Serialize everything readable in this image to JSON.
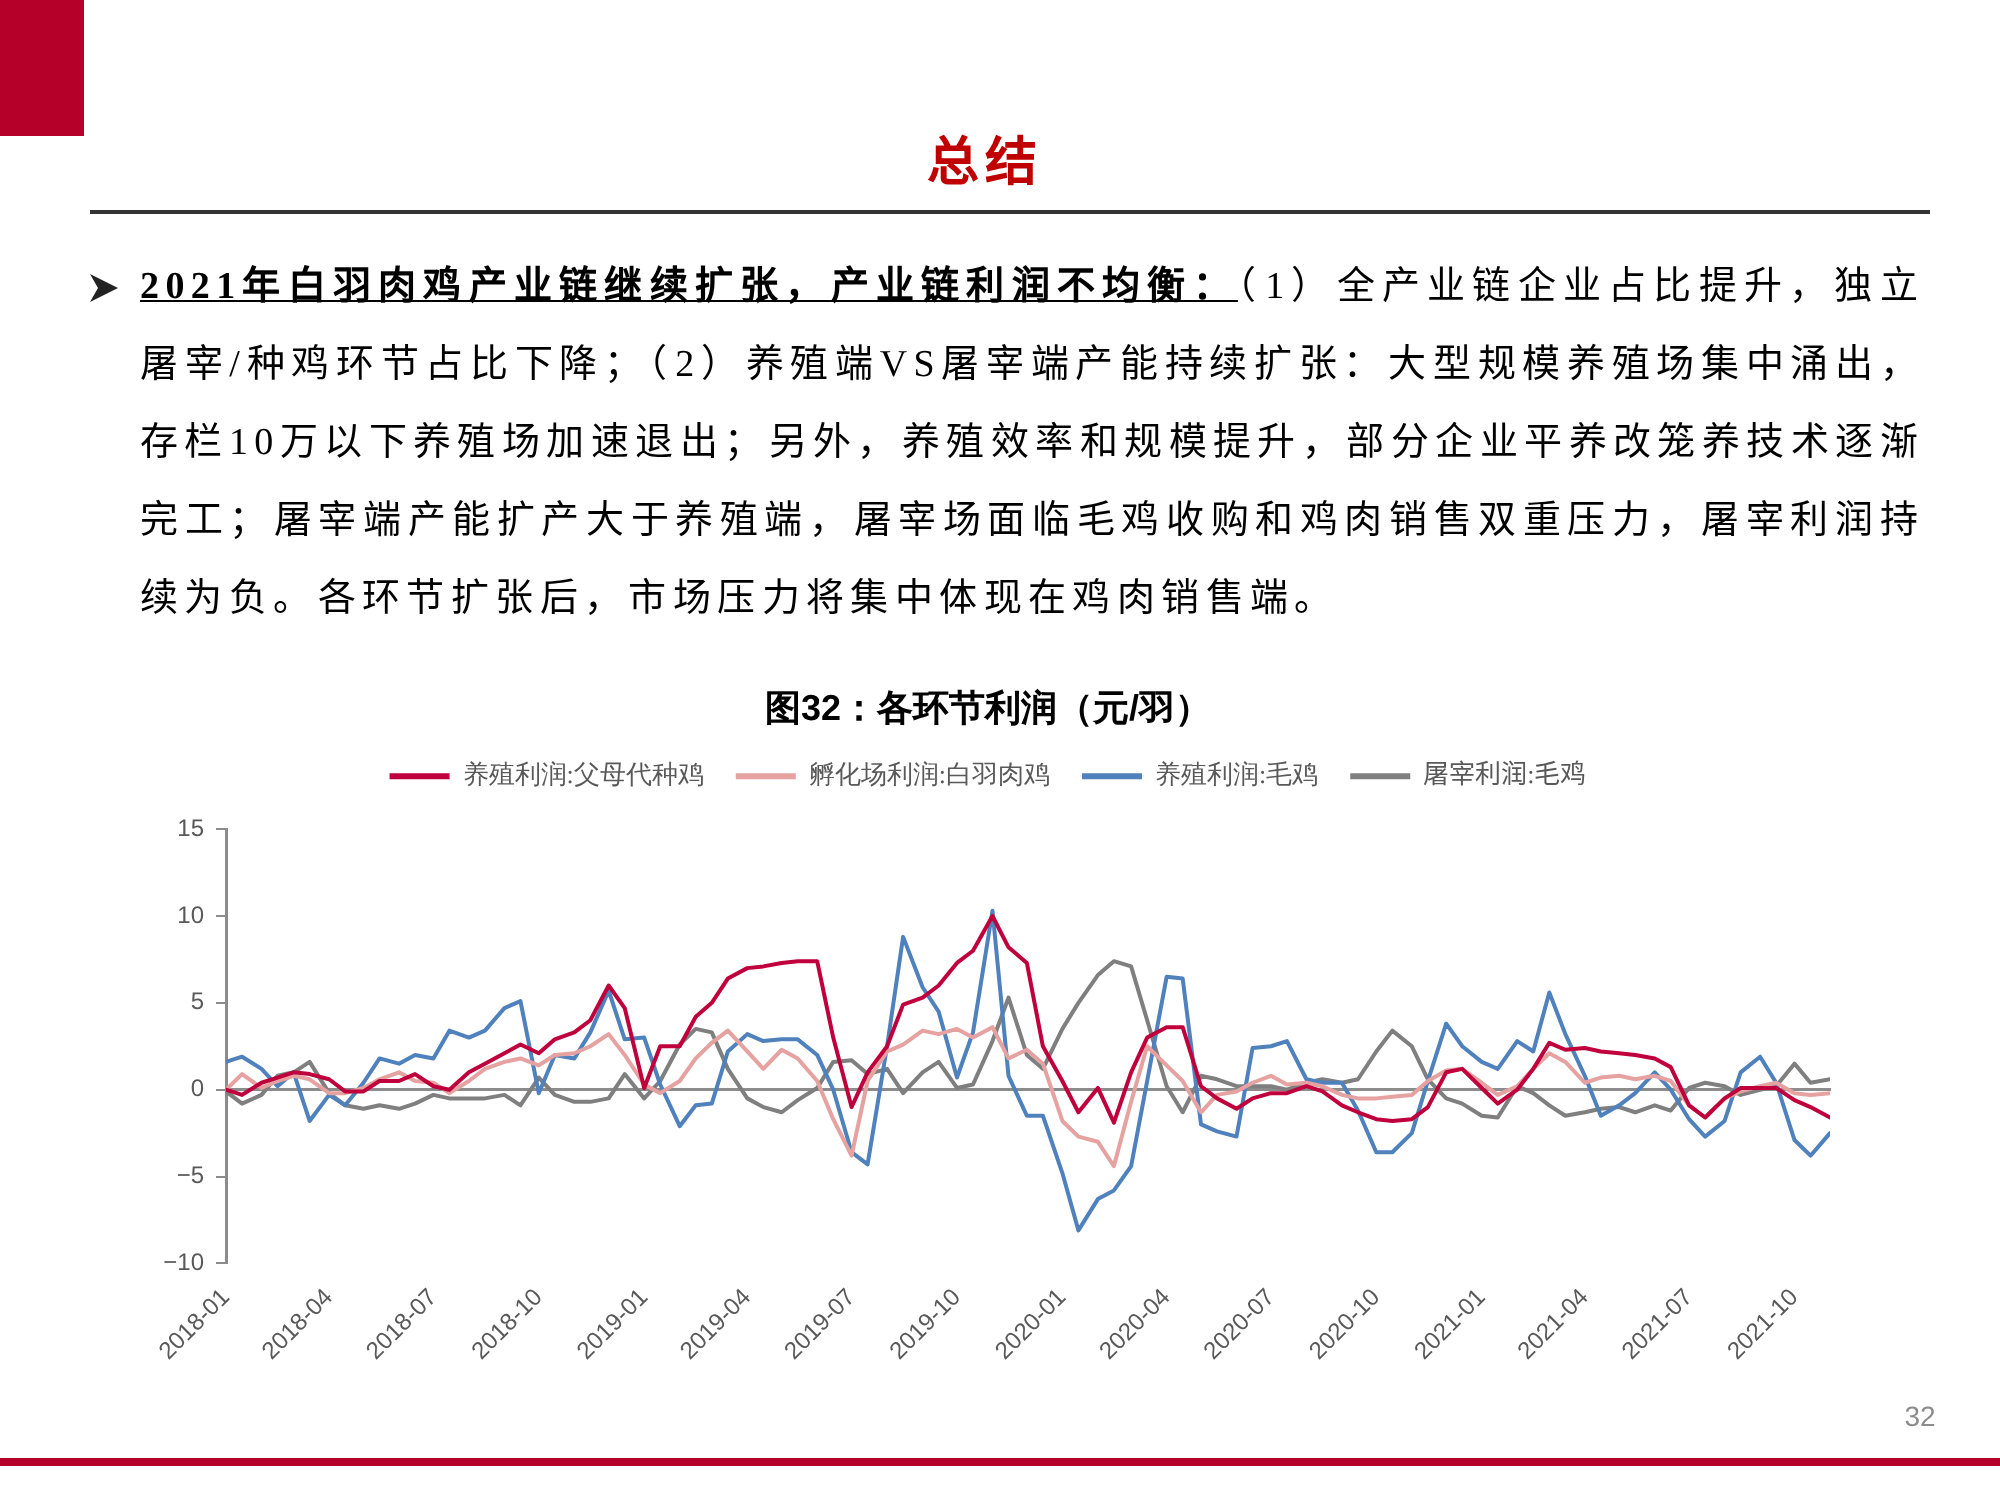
{
  "chart_data": {
    "type": "line",
    "title": "图32：各环节利润（元/羽）",
    "annotations": [
      "总结",
      "2021年白羽肉鸡产业链继续扩张，产业链利润不均衡：",
      "（1）全产业链企业占比提升，独立",
      "屠宰/种鸡环节占比下降；（2）养殖端VS屠宰端产能持续扩张：大型规模养殖场集中涌出，存栏10万以下养殖场加速退出；另外，养殖效率和规模提升，部分企业平养改笼养技术逐渐完工；屠宰端产能扩产大于养殖端，屠宰场面临毛鸡收购和鸡肉销售双重压力，屠宰利润持续为负。各环节扩张后，市场压力将集中体现在鸡肉销售端。",
      "32"
    ],
    "x": [
      "2018-01-01",
      "2018-01-15",
      "2018-02-01",
      "2018-02-15",
      "2018-03-01",
      "2018-03-15",
      "2018-04-01",
      "2018-04-15",
      "2018-05-01",
      "2018-05-15",
      "2018-06-01",
      "2018-06-15",
      "2018-07-01",
      "2018-07-15",
      "2018-08-01",
      "2018-08-15",
      "2018-09-01",
      "2018-09-15",
      "2018-10-01",
      "2018-10-15",
      "2018-11-01",
      "2018-11-15",
      "2018-12-01",
      "2018-12-15",
      "2019-01-01",
      "2019-01-15",
      "2019-02-01",
      "2019-02-15",
      "2019-03-01",
      "2019-03-15",
      "2019-04-01",
      "2019-04-15",
      "2019-05-01",
      "2019-05-15",
      "2019-06-01",
      "2019-06-15",
      "2019-07-01",
      "2019-07-15",
      "2019-08-01",
      "2019-08-15",
      "2019-09-01",
      "2019-09-15",
      "2019-10-01",
      "2019-10-15",
      "2019-11-01",
      "2019-11-15",
      "2019-12-01",
      "2019-12-15",
      "2020-01-01",
      "2020-01-15",
      "2020-02-01",
      "2020-02-15",
      "2020-03-01",
      "2020-03-15",
      "2020-04-01",
      "2020-04-15",
      "2020-05-01",
      "2020-05-15",
      "2020-06-01",
      "2020-06-15",
      "2020-07-01",
      "2020-07-15",
      "2020-08-01",
      "2020-08-15",
      "2020-09-01",
      "2020-09-15",
      "2020-10-01",
      "2020-10-15",
      "2020-11-01",
      "2020-11-15",
      "2020-12-01",
      "2020-12-15",
      "2021-01-01",
      "2021-01-15",
      "2021-02-01",
      "2021-02-15",
      "2021-03-01",
      "2021-03-15",
      "2021-04-01",
      "2021-04-15",
      "2021-05-01",
      "2021-05-15",
      "2021-06-01",
      "2021-06-15",
      "2021-07-01",
      "2021-07-15",
      "2021-08-01",
      "2021-08-15",
      "2021-09-01",
      "2021-09-15",
      "2021-10-01",
      "2021-10-15",
      "2021-11-01"
    ],
    "series": [
      {
        "name": "养殖利润:父母代种鸡",
        "color": "#c0003c",
        "values": [
          0,
          -0.3,
          0.4,
          0.7,
          1.0,
          0.9,
          0.6,
          -0.1,
          -0.1,
          0.5,
          0.5,
          0.9,
          0.2,
          0,
          1.0,
          1.5,
          2.1,
          2.6,
          2.1,
          2.9,
          3.3,
          4.0,
          6.0,
          4.7,
          0.1,
          2.5,
          2.5,
          4.2,
          5.0,
          6.4,
          7.0,
          7.1,
          7.3,
          7.4,
          7.4,
          3.0,
          -1.0,
          1.0,
          2.5,
          4.9,
          5.3,
          6.0,
          7.3,
          8.0,
          10.0,
          8.2,
          7.3,
          2.5,
          0.5,
          -1.3,
          0.1,
          -1.9,
          1.0,
          3.0,
          3.6,
          3.6,
          0.2,
          -0.5,
          -1.1,
          -0.5,
          -0.2,
          -0.2,
          0.2,
          -0.1,
          -0.9,
          -1.3,
          -1.7,
          -1.8,
          -1.7,
          -1.0,
          1.0,
          1.2,
          0.1,
          -0.8,
          0,
          1.2,
          2.7,
          2.3,
          2.4,
          2.2,
          2.1,
          2.0,
          1.8,
          1.3,
          -0.9,
          -1.6,
          -0.5,
          0.1,
          0.1,
          0.1,
          -0.6,
          -1.0,
          -1.6
        ]
      },
      {
        "name": "孵化场利润:白羽肉鸡",
        "color": "#e6a1a1",
        "values": [
          0,
          0.9,
          0.1,
          0.5,
          0.8,
          0.6,
          -0.2,
          -0.2,
          0.1,
          0.6,
          1.0,
          0.5,
          0.4,
          -0.2,
          0.5,
          1.2,
          1.6,
          1.8,
          1.4,
          2.0,
          2.1,
          2.5,
          3.2,
          2.0,
          0.3,
          -0.2,
          0.5,
          1.8,
          2.7,
          3.4,
          2.2,
          1.2,
          2.3,
          1.8,
          0.5,
          -1.7,
          -3.8,
          0.5,
          2.2,
          2.6,
          3.4,
          3.2,
          3.5,
          3.0,
          3.6,
          1.8,
          2.3,
          1.5,
          -1.8,
          -2.7,
          -3.0,
          -4.4,
          -0.7,
          2.5,
          1.4,
          0.5,
          -1.3,
          -0.3,
          -0.1,
          0.4,
          0.8,
          0.3,
          0.4,
          0.2,
          -0.3,
          -0.5,
          -0.5,
          -0.4,
          -0.3,
          0.5,
          1.1,
          1.2,
          0.4,
          -0.3,
          0.2,
          1.2,
          2.1,
          1.6,
          0.4,
          0.7,
          0.8,
          0.6,
          0.8,
          0.5,
          -0.9,
          -1.6,
          -0.5,
          -0.1,
          0.2,
          0.4,
          -0.2,
          -0.3,
          -0.2
        ]
      },
      {
        "name": "养殖利润:毛鸡",
        "color": "#4f81bd",
        "values": [
          1.6,
          1.9,
          1.2,
          0.2,
          1.0,
          -1.8,
          -0.3,
          -0.9,
          0.4,
          1.8,
          1.5,
          2.0,
          1.8,
          3.4,
          3.0,
          3.4,
          4.7,
          5.1,
          -0.2,
          2.0,
          1.8,
          3.3,
          5.7,
          2.9,
          3.0,
          0.3,
          -2.1,
          -0.9,
          -0.8,
          2.2,
          3.2,
          2.8,
          2.9,
          2.9,
          2.0,
          0,
          -3.6,
          -4.3,
          2.5,
          8.8,
          5.9,
          4.5,
          0.7,
          3.3,
          10.3,
          0.8,
          -1.5,
          -1.5,
          -4.8,
          -8.1,
          -6.3,
          -5.8,
          -4.4,
          0.5,
          6.5,
          6.4,
          -2.0,
          -2.4,
          -2.7,
          2.4,
          2.5,
          2.8,
          0.6,
          0.4,
          0.4,
          -1.2,
          -3.6,
          -3.6,
          -2.5,
          0.5,
          3.8,
          2.5,
          1.6,
          1.2,
          2.8,
          2.2,
          5.6,
          3.2,
          0.8,
          -1.5,
          -0.9,
          -0.2,
          1.0,
          0,
          -1.7,
          -2.7,
          -1.8,
          1.0,
          1.9,
          0.4,
          -2.9,
          -3.8,
          -2.5
        ]
      },
      {
        "name": "屠宰利润:毛鸡",
        "color": "#7f7f7f",
        "values": [
          -0.1,
          -0.8,
          -0.3,
          0.8,
          1.0,
          1.6,
          -0.2,
          -0.9,
          -1.1,
          -0.9,
          -1.1,
          -0.8,
          -0.3,
          -0.5,
          -0.5,
          -0.5,
          -0.3,
          -0.9,
          0.7,
          -0.3,
          -0.7,
          -0.7,
          -0.5,
          0.9,
          -0.5,
          0.5,
          2.6,
          3.5,
          3.3,
          1.2,
          -0.5,
          -1.0,
          -1.3,
          -0.6,
          0.1,
          1.6,
          1.7,
          0.9,
          1.2,
          -0.2,
          1.0,
          1.6,
          0.1,
          0.3,
          2.8,
          5.3,
          2.0,
          1.2,
          3.5,
          5.0,
          6.6,
          7.4,
          7.1,
          4.0,
          0.2,
          -1.3,
          0.8,
          0.6,
          0.2,
          0.2,
          0.2,
          0,
          0.4,
          0.6,
          0.4,
          0.6,
          2.2,
          3.4,
          2.5,
          0.6,
          -0.5,
          -0.8,
          -1.5,
          -1.6,
          0.2,
          -0.2,
          -0.9,
          -1.5,
          -1.3,
          -1.1,
          -1.0,
          -1.3,
          -0.9,
          -1.2,
          0.1,
          0.4,
          0.2,
          -0.3,
          0,
          0.2,
          1.5,
          0.4,
          0.6
        ]
      }
    ],
    "xlim": [
      "2018-01-01",
      "2021-11-01"
    ],
    "xticks": [
      "2018-01",
      "2018-04",
      "2018-07",
      "2018-10",
      "2019-01",
      "2019-04",
      "2019-07",
      "2019-10",
      "2020-01",
      "2020-04",
      "2020-07",
      "2020-10",
      "2021-01",
      "2021-04",
      "2021-07",
      "2021-10"
    ],
    "ylim": [
      -10,
      15
    ],
    "yticks": [
      -10,
      -5,
      0,
      5,
      10,
      15
    ],
    "legend": "top"
  }
}
